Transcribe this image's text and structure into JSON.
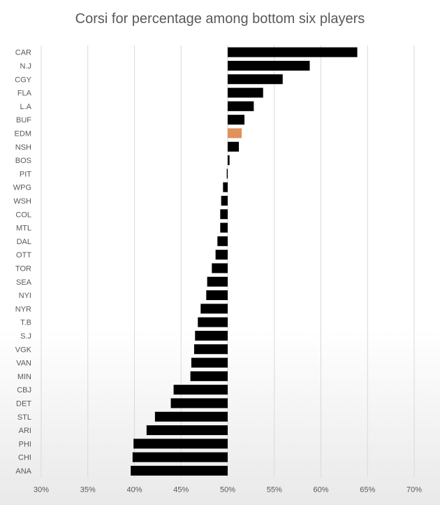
{
  "chart_data": {
    "type": "bar",
    "orientation": "horizontal",
    "title": "Corsi for percentage among bottom six players",
    "xlabel": "",
    "ylabel": "",
    "xlim": [
      30,
      70
    ],
    "baseline": 50,
    "xticks": [
      "30%",
      "35%",
      "40%",
      "45%",
      "50%",
      "55%",
      "60%",
      "65%",
      "70%"
    ],
    "grid": true,
    "categories": [
      "CAR",
      "N.J",
      "CGY",
      "FLA",
      "L.A",
      "BUF",
      "EDM",
      "NSH",
      "BOS",
      "PIT",
      "WPG",
      "WSH",
      "COL",
      "MTL",
      "DAL",
      "OTT",
      "TOR",
      "SEA",
      "NYI",
      "NYR",
      "T.B",
      "S.J",
      "VGK",
      "VAN",
      "MIN",
      "CBJ",
      "DET",
      "STL",
      "ARI",
      "PHI",
      "CHI",
      "ANA"
    ],
    "values": [
      63.9,
      58.8,
      55.9,
      53.8,
      52.8,
      51.8,
      51.5,
      51.2,
      50.2,
      49.9,
      49.5,
      49.3,
      49.2,
      49.2,
      48.9,
      48.7,
      48.3,
      47.8,
      47.7,
      47.1,
      46.8,
      46.5,
      46.4,
      46.1,
      46.0,
      44.2,
      43.9,
      42.2,
      41.3,
      39.9,
      39.8,
      39.6
    ],
    "highlight": "EDM",
    "colors": {
      "bar": "#000000",
      "highlight": "#e0925a",
      "grid": "#d9d9d9",
      "text": "#595959"
    }
  }
}
